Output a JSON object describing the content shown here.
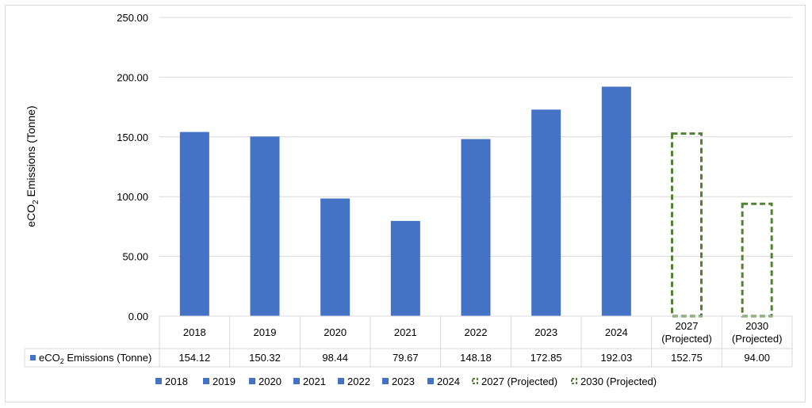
{
  "chart_data": {
    "type": "bar",
    "ylabel_prefix": "eCO",
    "ylabel_sub": "2",
    "ylabel_suffix": " Emissions (Tonne)",
    "ylim": [
      0,
      250
    ],
    "yticks": [
      "0.00",
      "50.00",
      "100.00",
      "150.00",
      "200.00",
      "250.00"
    ],
    "grid": true,
    "legend_position": "bottom",
    "categories": [
      {
        "line1": "2018",
        "line2": "",
        "projected": false
      },
      {
        "line1": "2019",
        "line2": "",
        "projected": false
      },
      {
        "line1": "2020",
        "line2": "",
        "projected": false
      },
      {
        "line1": "2021",
        "line2": "",
        "projected": false
      },
      {
        "line1": "2022",
        "line2": "",
        "projected": false
      },
      {
        "line1": "2023",
        "line2": "",
        "projected": false
      },
      {
        "line1": "2024",
        "line2": "",
        "projected": false
      },
      {
        "line1": "2027",
        "line2": "(Projected)",
        "projected": true
      },
      {
        "line1": "2030",
        "line2": "(Projected)",
        "projected": true
      }
    ],
    "values": [
      154.12,
      150.32,
      98.44,
      79.67,
      148.18,
      172.85,
      192.03,
      152.75,
      94.0
    ],
    "value_labels": [
      "154.12",
      "150.32",
      "98.44",
      "79.67",
      "148.18",
      "172.85",
      "192.03",
      "152.75",
      "94.00"
    ],
    "table_row_label_prefix": "eCO",
    "table_row_label_sub": "2",
    "table_row_label_suffix": " Emissions (Tonne)",
    "legend": [
      "2018",
      "2019",
      "2020",
      "2021",
      "2022",
      "2023",
      "2024",
      "2027 (Projected)",
      "2030 (Projected)"
    ],
    "colors": {
      "actual": "#4472c4",
      "projected": "#548235",
      "grid": "#d9d9d9"
    }
  }
}
